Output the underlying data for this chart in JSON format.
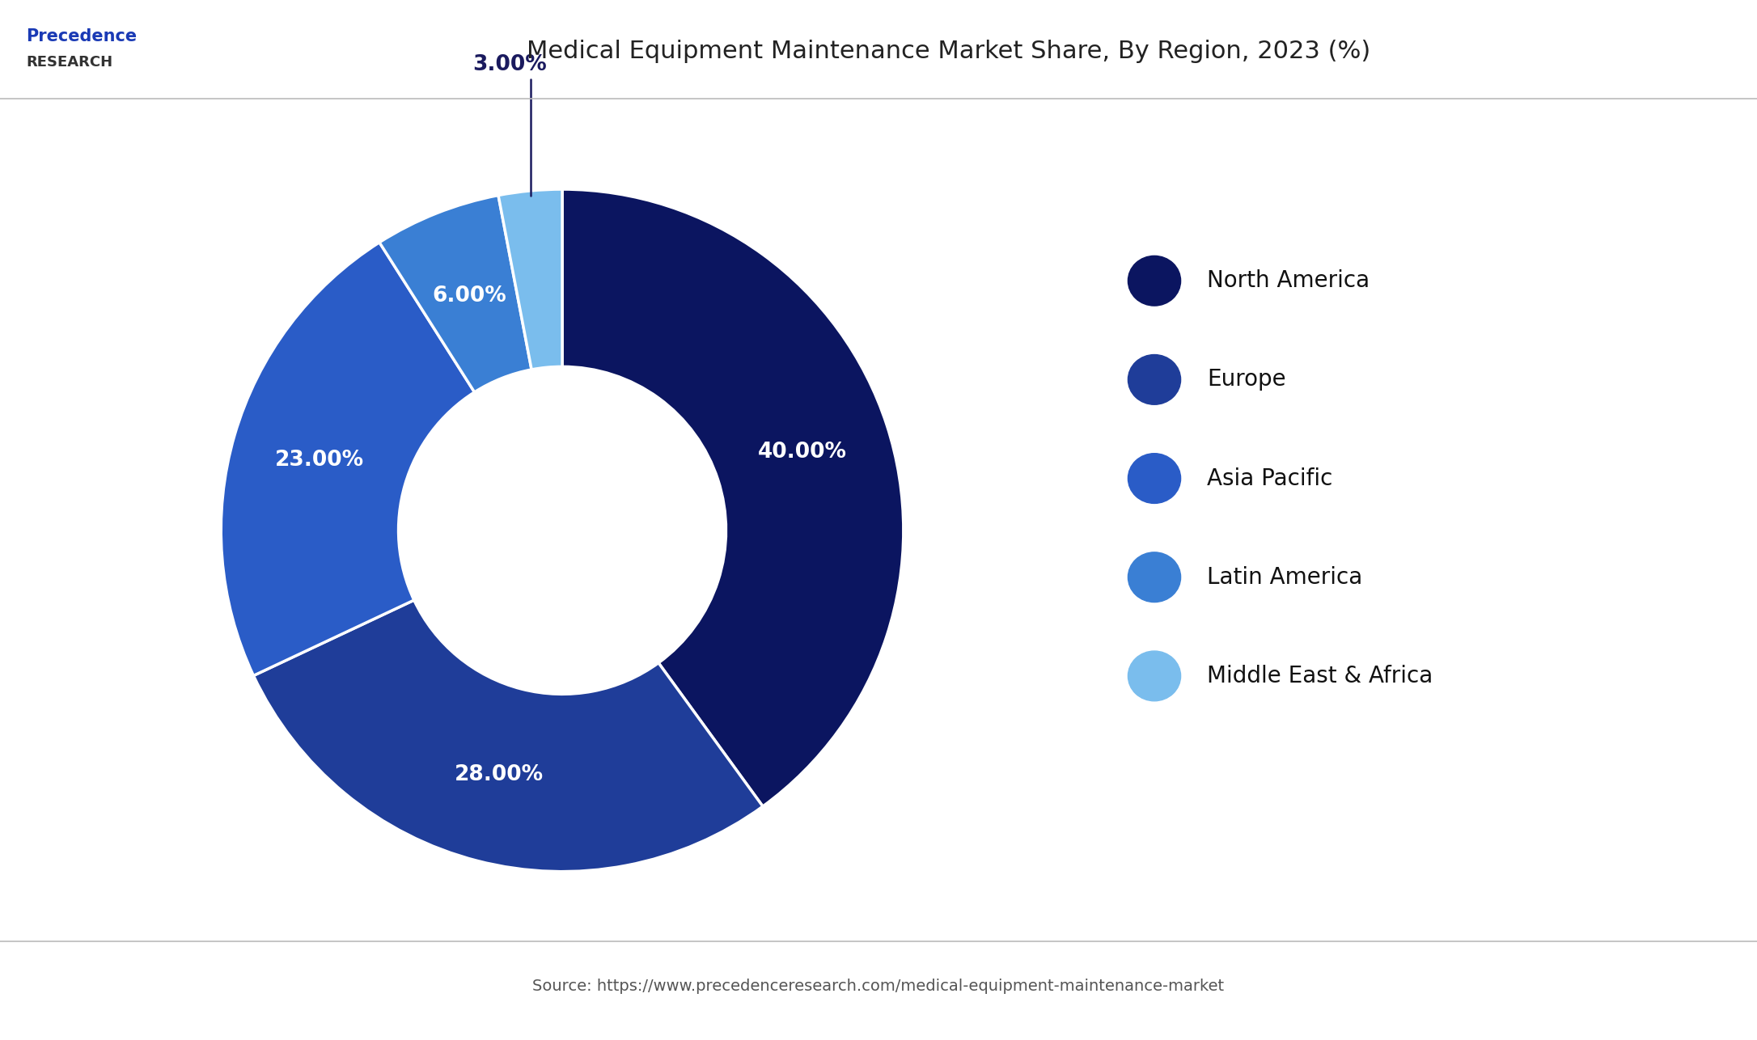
{
  "title": "Medical Equipment Maintenance Market Share, By Region, 2023 (%)",
  "source": "Source: https://www.precedenceresearch.com/medical-equipment-maintenance-market",
  "labels": [
    "North America",
    "Europe",
    "Asia Pacific",
    "Latin America",
    "Middle East & Africa"
  ],
  "values": [
    40.0,
    28.0,
    23.0,
    6.0,
    3.0
  ],
  "colors": [
    "#0b1560",
    "#1f3d99",
    "#2a5cc7",
    "#3a7fd4",
    "#7abded"
  ],
  "label_texts": [
    "40.00%",
    "28.00%",
    "23.00%",
    "6.00%",
    "3.00%"
  ],
  "background_color": "#ffffff",
  "title_fontsize": 22,
  "label_fontsize": 19,
  "legend_fontsize": 20,
  "source_fontsize": 14
}
